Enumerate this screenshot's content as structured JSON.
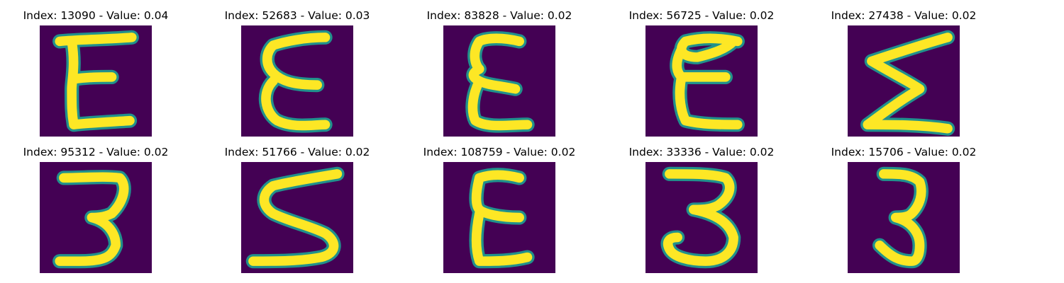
{
  "colors": {
    "background": "#440154",
    "stroke": "#fde725",
    "edge": "#21918c"
  },
  "images": [
    {
      "title": "Index: 13090 - Value: 0.04",
      "glyph": "E"
    },
    {
      "title": "Index: 52683 - Value: 0.03",
      "glyph": "E"
    },
    {
      "title": "Index: 83828 - Value: 0.02",
      "glyph": "E"
    },
    {
      "title": "Index: 56725 - Value: 0.02",
      "glyph": "E"
    },
    {
      "title": "Index: 27438 - Value: 0.02",
      "glyph": "Σ"
    },
    {
      "title": "Index: 95312 - Value: 0.02",
      "glyph": "3"
    },
    {
      "title": "Index: 51766 - Value: 0.02",
      "glyph": "S"
    },
    {
      "title": "Index: 108759 - Value: 0.02",
      "glyph": "E"
    },
    {
      "title": "Index: 33336 - Value: 0.02",
      "glyph": "3"
    },
    {
      "title": "Index: 15706 - Value: 0.02",
      "glyph": "3"
    }
  ]
}
